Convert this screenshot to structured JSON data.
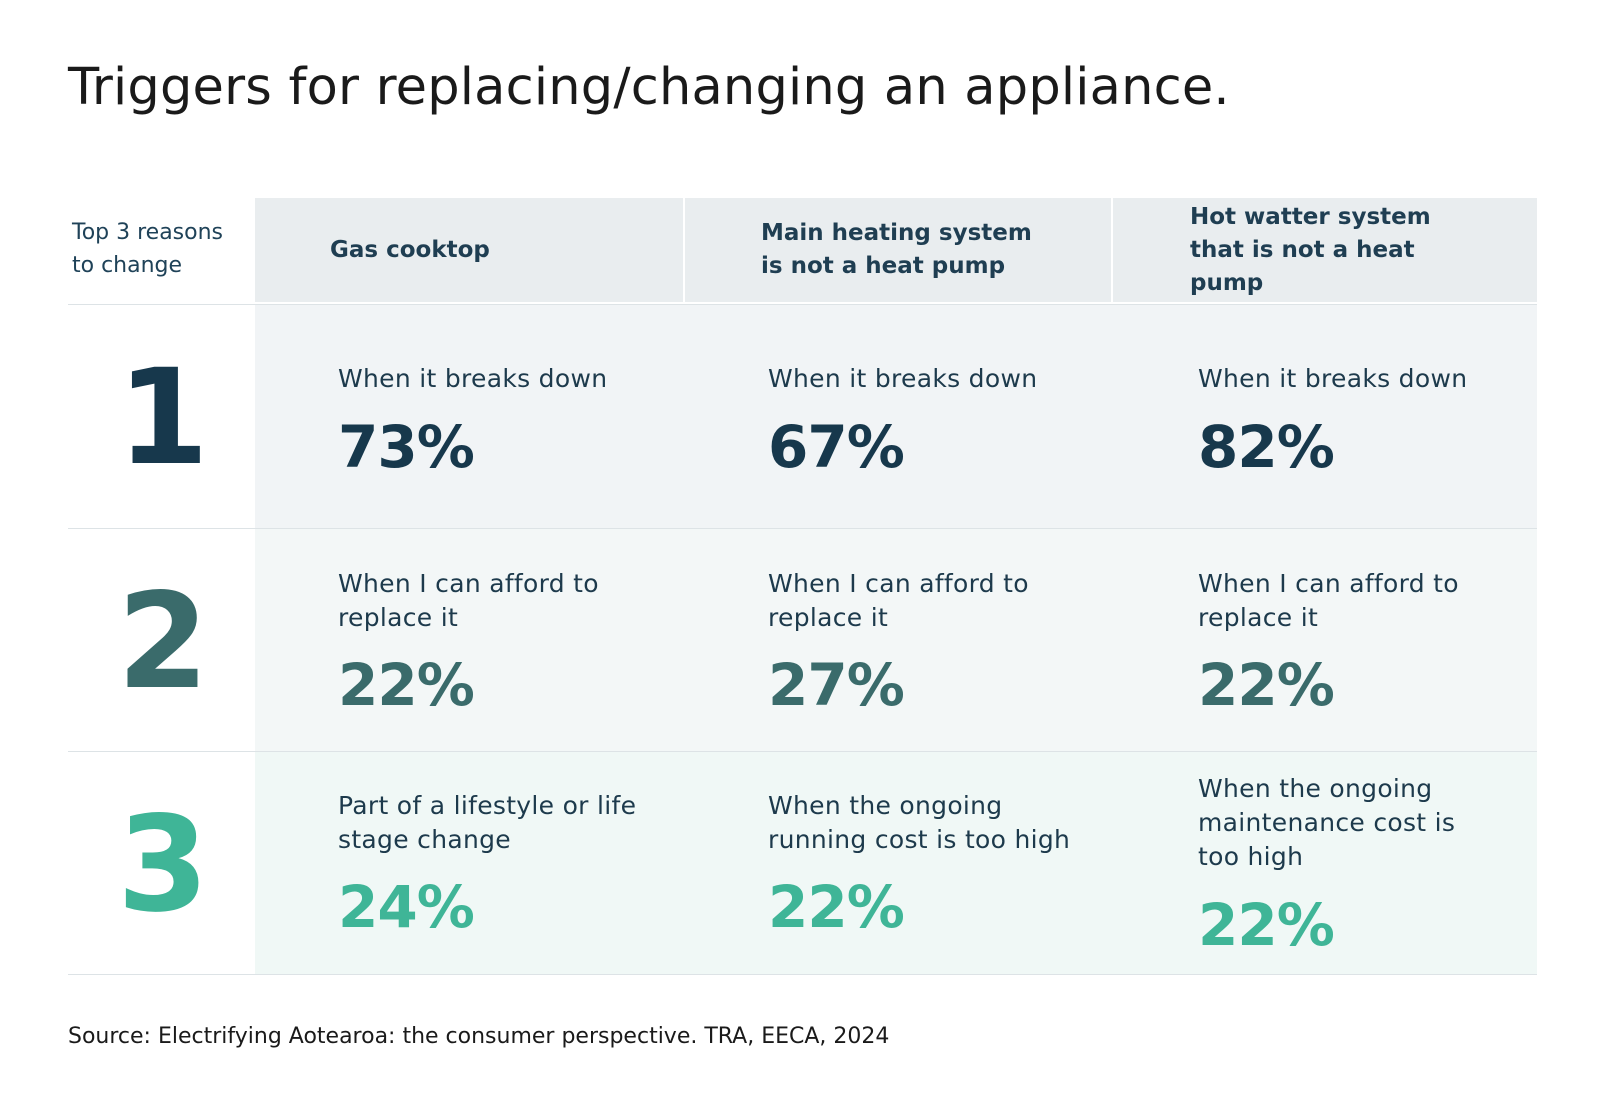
{
  "title": "Triggers for replacing/changing an appliance.",
  "colors": {
    "rank1": "#17384c",
    "rank2": "#3a6b6b",
    "rank3": "#3fb597",
    "header_bg": "#e9edef"
  },
  "chart_data": {
    "type": "table",
    "title": "Triggers for replacing/changing an appliance.",
    "corner_label": "Top 3 reasons to change",
    "columns": [
      "Gas cooktop",
      "Main heating system is not a heat pump",
      "Hot watter system that is not a heat pump"
    ],
    "ranks": [
      "1",
      "2",
      "3"
    ],
    "rows": [
      [
        {
          "reason": "When it breaks down",
          "percent": "73%",
          "value": 73
        },
        {
          "reason": "When it breaks down",
          "percent": "67%",
          "value": 67
        },
        {
          "reason": "When it breaks down",
          "percent": "82%",
          "value": 82
        }
      ],
      [
        {
          "reason": "When I can afford to replace it",
          "percent": "22%",
          "value": 22
        },
        {
          "reason": "When I can afford to replace it",
          "percent": "27%",
          "value": 27
        },
        {
          "reason": "When I can afford to replace it",
          "percent": "22%",
          "value": 22
        }
      ],
      [
        {
          "reason": "Part of a lifestyle or life stage change",
          "percent": "24%",
          "value": 24
        },
        {
          "reason": "When the ongoing running cost is too high",
          "percent": "22%",
          "value": 22
        },
        {
          "reason": "When the ongoing maintenance cost is too high",
          "percent": "22%",
          "value": 22
        }
      ]
    ]
  },
  "source": "Source: Electrifying Aotearoa: the consumer perspective. TRA, EECA, 2024"
}
